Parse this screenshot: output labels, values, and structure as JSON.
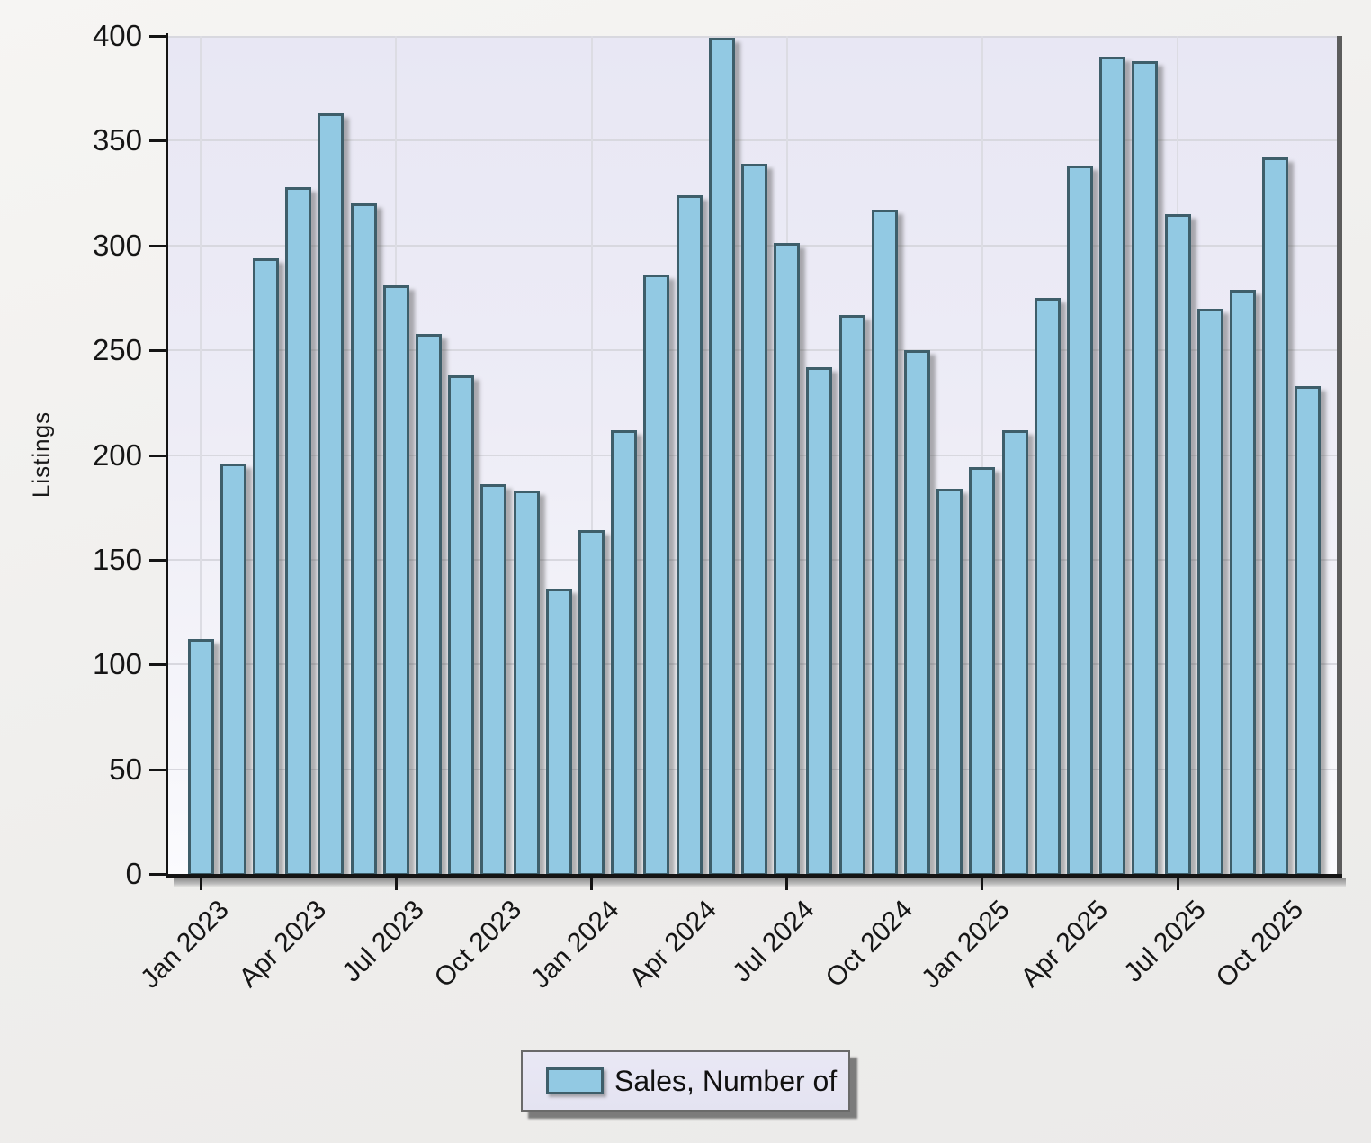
{
  "page": {
    "background": "#F1F0EF"
  },
  "y_axis": {
    "title": "Listings",
    "tick_labels": [
      "0",
      "50",
      "100",
      "150",
      "200",
      "250",
      "300",
      "350",
      "400"
    ]
  },
  "x_axis": {
    "labels": [
      {
        "month_index": 0,
        "text": "Jan 2023"
      },
      {
        "month_index": 3,
        "text": "Apr 2023"
      },
      {
        "month_index": 6,
        "text": "Jul 2023"
      },
      {
        "month_index": 9,
        "text": "Oct 2023"
      },
      {
        "month_index": 12,
        "text": "Jan 2024"
      },
      {
        "month_index": 15,
        "text": "Apr 2024"
      },
      {
        "month_index": 18,
        "text": "Jul 2024"
      },
      {
        "month_index": 21,
        "text": "Oct 2024"
      },
      {
        "month_index": 24,
        "text": "Jan 2025"
      },
      {
        "month_index": 27,
        "text": "Apr 2025"
      },
      {
        "month_index": 30,
        "text": "Jul 2025"
      },
      {
        "month_index": 33,
        "text": "Oct 2025"
      }
    ],
    "tick_month_indices": [
      0,
      6,
      12,
      18,
      24,
      30
    ]
  },
  "legend": {
    "label": "Sales, Number of"
  },
  "colors": {
    "bar_fill": "#92C9E3",
    "bar_border": "#3E5E6A",
    "plot_bg_top": "#E8E7F4",
    "plot_bg_bottom": "#FBFBFE",
    "gridline": "#D8D8DF",
    "axis": "#141414",
    "text": "#151515",
    "legend_bg": "#E7E6F4",
    "page_bg": "#F1F0EF"
  },
  "chart_data": {
    "type": "bar",
    "title": "",
    "xlabel": "",
    "ylabel": "Listings",
    "ylim": [
      0,
      400
    ],
    "y_tick_step": 50,
    "grid": true,
    "legend": "Sales, Number of",
    "legend_position": "bottom-center",
    "categories": [
      "Jan 2023",
      "Feb 2023",
      "Mar 2023",
      "Apr 2023",
      "May 2023",
      "Jun 2023",
      "Jul 2023",
      "Aug 2023",
      "Sep 2023",
      "Oct 2023",
      "Nov 2023",
      "Dec 2023",
      "Jan 2024",
      "Feb 2024",
      "Mar 2024",
      "Apr 2024",
      "May 2024",
      "Jun 2024",
      "Jul 2024",
      "Aug 2024",
      "Sep 2024",
      "Oct 2024",
      "Nov 2024",
      "Dec 2024",
      "Jan 2025",
      "Feb 2025",
      "Mar 2025",
      "Apr 2025",
      "May 2025",
      "Jun 2025",
      "Jul 2025",
      "Aug 2025",
      "Sep 2025",
      "Oct 2025",
      "Nov 2025"
    ],
    "series": [
      {
        "name": "Sales, Number of",
        "values": [
          112,
          196,
          294,
          328,
          363,
          320,
          281,
          258,
          238,
          186,
          183,
          136,
          164,
          212,
          286,
          324,
          399,
          339,
          301,
          242,
          267,
          317,
          250,
          184,
          194,
          212,
          275,
          338,
          390,
          388,
          315,
          270,
          279,
          342,
          233
        ]
      }
    ]
  }
}
